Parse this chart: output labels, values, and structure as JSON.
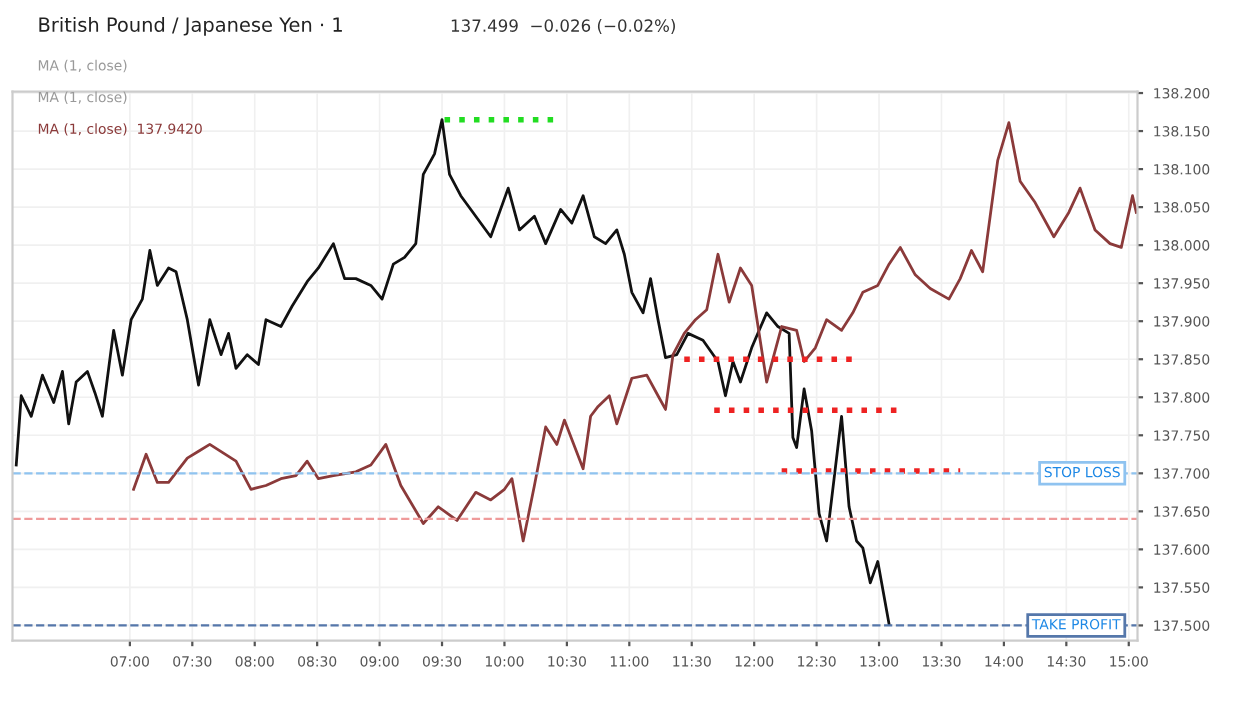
{
  "chart_data": {
    "type": "line",
    "title": "British Pound / Japanese Yen · 1",
    "subtitle": "137.499  −0.026 (−0.02%)",
    "annotations": [
      "MA (1, close)",
      "MA (1, close)",
      "MA (1, close)  137.9420"
    ],
    "xlim": [
      6.06,
      15.07
    ],
    "ylim": [
      137.48,
      138.202
    ],
    "xticks": [
      {
        "value": 7,
        "label": "07:00"
      },
      {
        "value": 7.5,
        "label": "07:30"
      },
      {
        "value": 8,
        "label": "08:00"
      },
      {
        "value": 8.5,
        "label": "08:30"
      },
      {
        "value": 9,
        "label": "09:00"
      },
      {
        "value": 9.5,
        "label": "09:30"
      },
      {
        "value": 10,
        "label": "10:00"
      },
      {
        "value": 10.5,
        "label": "10:30"
      },
      {
        "value": 11,
        "label": "11:00"
      },
      {
        "value": 11.5,
        "label": "11:30"
      },
      {
        "value": 12,
        "label": "12:00"
      },
      {
        "value": 12.5,
        "label": "12:30"
      },
      {
        "value": 13,
        "label": "13:00"
      },
      {
        "value": 13.5,
        "label": "13:30"
      },
      {
        "value": 14,
        "label": "14:00"
      },
      {
        "value": 14.5,
        "label": "14:30"
      },
      {
        "value": 15,
        "label": "15:00"
      }
    ],
    "yticks": [
      {
        "value": 137.5,
        "label": "137.500"
      },
      {
        "value": 137.55,
        "label": "137.550"
      },
      {
        "value": 137.6,
        "label": "137.600"
      },
      {
        "value": 137.65,
        "label": "137.650"
      },
      {
        "value": 137.7,
        "label": "137.700"
      },
      {
        "value": 137.75,
        "label": "137.750"
      },
      {
        "value": 137.8,
        "label": "137.800"
      },
      {
        "value": 137.85,
        "label": "137.850"
      },
      {
        "value": 137.9,
        "label": "137.900"
      },
      {
        "value": 137.95,
        "label": "137.950"
      },
      {
        "value": 138.0,
        "label": "138.000"
      },
      {
        "value": 138.05,
        "label": "138.050"
      },
      {
        "value": 138.1,
        "label": "138.100"
      },
      {
        "value": 138.15,
        "label": "138.150"
      },
      {
        "value": 138.2,
        "label": "138.200"
      }
    ],
    "grid": true,
    "legend": false,
    "marker": "none",
    "line_style": "solid",
    "ref_lines": [
      {
        "axis": "y",
        "value": 137.7,
        "label": "STOP LOSS",
        "color": "#8fc3f0",
        "line_style": "dashed"
      },
      {
        "axis": "y",
        "value": 137.64,
        "label": null,
        "color": "#ef9a9a",
        "line_style": "dashed"
      },
      {
        "axis": "y",
        "value": 137.5,
        "label": "TAKE PROFIT",
        "color": "#5577aa",
        "line_style": "dashed"
      }
    ],
    "series": [
      {
        "color": "#111111",
        "x": [
          6.09,
          6.13,
          6.21,
          6.3,
          6.39,
          6.46,
          6.51,
          6.57,
          6.66,
          6.72,
          6.78,
          6.87,
          6.94,
          7.01,
          7.1,
          7.16,
          7.22,
          7.31,
          7.37,
          7.46,
          7.55,
          7.64,
          7.73,
          7.79,
          7.85,
          7.94,
          8.03,
          8.09,
          8.21,
          8.3,
          8.42,
          8.51,
          8.63,
          8.72,
          8.81,
          8.93,
          9.02,
          9.11,
          9.2,
          9.29,
          9.35,
          9.44,
          9.5,
          9.56,
          9.65,
          9.77,
          9.89,
          10.03,
          10.12,
          10.24,
          10.33,
          10.45,
          10.54,
          10.63,
          10.72,
          10.81,
          10.9,
          10.96,
          11.02,
          11.11,
          11.17,
          11.23,
          11.29,
          11.38,
          11.47,
          11.59,
          11.71,
          11.77,
          11.83,
          11.89,
          11.98,
          12.1,
          12.19,
          12.28,
          12.31,
          12.34,
          12.4,
          12.46,
          12.52,
          12.58,
          12.64,
          12.7,
          12.76,
          12.82,
          12.87,
          12.93,
          12.99,
          13.08
        ],
        "values": [
          137.711,
          137.802,
          137.775,
          137.829,
          137.793,
          137.834,
          137.765,
          137.82,
          137.834,
          137.806,
          137.775,
          137.888,
          137.829,
          137.902,
          137.929,
          137.993,
          137.947,
          137.97,
          137.965,
          137.902,
          137.816,
          137.902,
          137.856,
          137.884,
          137.838,
          137.856,
          137.843,
          137.902,
          137.893,
          137.92,
          137.952,
          137.97,
          138.002,
          137.956,
          137.956,
          137.947,
          137.929,
          137.975,
          137.984,
          138.002,
          138.093,
          138.12,
          138.165,
          138.093,
          138.065,
          138.038,
          138.011,
          138.075,
          138.02,
          138.038,
          138.002,
          138.047,
          138.029,
          138.065,
          138.011,
          138.002,
          138.02,
          137.988,
          137.938,
          137.911,
          137.956,
          137.902,
          137.852,
          137.856,
          137.884,
          137.875,
          137.847,
          137.802,
          137.847,
          137.82,
          137.865,
          137.911,
          137.893,
          137.884,
          137.747,
          137.734,
          137.811,
          137.756,
          137.647,
          137.611,
          137.693,
          137.775,
          137.656,
          137.611,
          137.602,
          137.556,
          137.584,
          137.502
        ]
      },
      {
        "color": "#8b3a3a",
        "x": [
          7.03,
          7.13,
          7.22,
          7.31,
          7.46,
          7.55,
          7.64,
          7.85,
          7.97,
          8.09,
          8.21,
          8.33,
          8.42,
          8.51,
          8.63,
          8.81,
          8.93,
          9.05,
          9.17,
          9.35,
          9.47,
          9.62,
          9.77,
          9.89,
          10.0,
          10.06,
          10.15,
          10.24,
          10.33,
          10.42,
          10.48,
          10.63,
          10.69,
          10.75,
          10.84,
          10.9,
          11.02,
          11.14,
          11.23,
          11.29,
          11.35,
          11.44,
          11.53,
          11.62,
          11.71,
          11.8,
          11.89,
          11.98,
          12.1,
          12.22,
          12.34,
          12.4,
          12.49,
          12.58,
          12.7,
          12.79,
          12.87,
          12.99,
          13.08,
          13.17,
          13.29,
          13.41,
          13.56,
          13.65,
          13.74,
          13.83,
          13.89,
          13.95,
          14.04,
          14.13,
          14.25,
          14.4,
          14.52,
          14.61,
          14.73,
          14.85,
          14.94,
          15.03,
          15.06
        ],
        "values": [
          137.679,
          137.725,
          137.688,
          137.688,
          137.72,
          137.729,
          137.738,
          137.716,
          137.679,
          137.684,
          137.693,
          137.697,
          137.716,
          137.693,
          137.697,
          137.702,
          137.711,
          137.738,
          137.684,
          137.634,
          137.656,
          137.638,
          137.675,
          137.665,
          137.679,
          137.693,
          137.611,
          137.684,
          137.761,
          137.738,
          137.77,
          137.706,
          137.775,
          137.788,
          137.802,
          137.765,
          137.825,
          137.829,
          137.802,
          137.784,
          137.856,
          137.884,
          137.902,
          137.915,
          137.988,
          137.925,
          137.97,
          137.947,
          137.82,
          137.893,
          137.888,
          137.847,
          137.865,
          137.902,
          137.888,
          137.911,
          137.938,
          137.947,
          137.975,
          137.997,
          137.961,
          137.943,
          137.929,
          137.956,
          137.993,
          137.965,
          138.038,
          138.111,
          138.161,
          138.084,
          138.056,
          138.011,
          138.043,
          138.075,
          138.02,
          138.002,
          137.997,
          138.065,
          138.043
        ]
      },
      {
        "color": "#22dd22",
        "line_style": "dotted",
        "x": [
          9.52,
          10.39
        ],
        "values": [
          138.165,
          138.165
        ]
      },
      {
        "color": "#ee2222",
        "line_style": "dotted",
        "x": [
          11.44,
          12.79
        ],
        "values": [
          137.85,
          137.85
        ]
      },
      {
        "color": "#ee2222",
        "line_style": "dotted",
        "x": [
          11.68,
          13.14
        ],
        "values": [
          137.783,
          137.783
        ]
      },
      {
        "color": "#ee2222",
        "line_style": "dotted",
        "x": [
          12.22,
          13.65
        ],
        "values": [
          137.703,
          137.703
        ]
      }
    ]
  }
}
